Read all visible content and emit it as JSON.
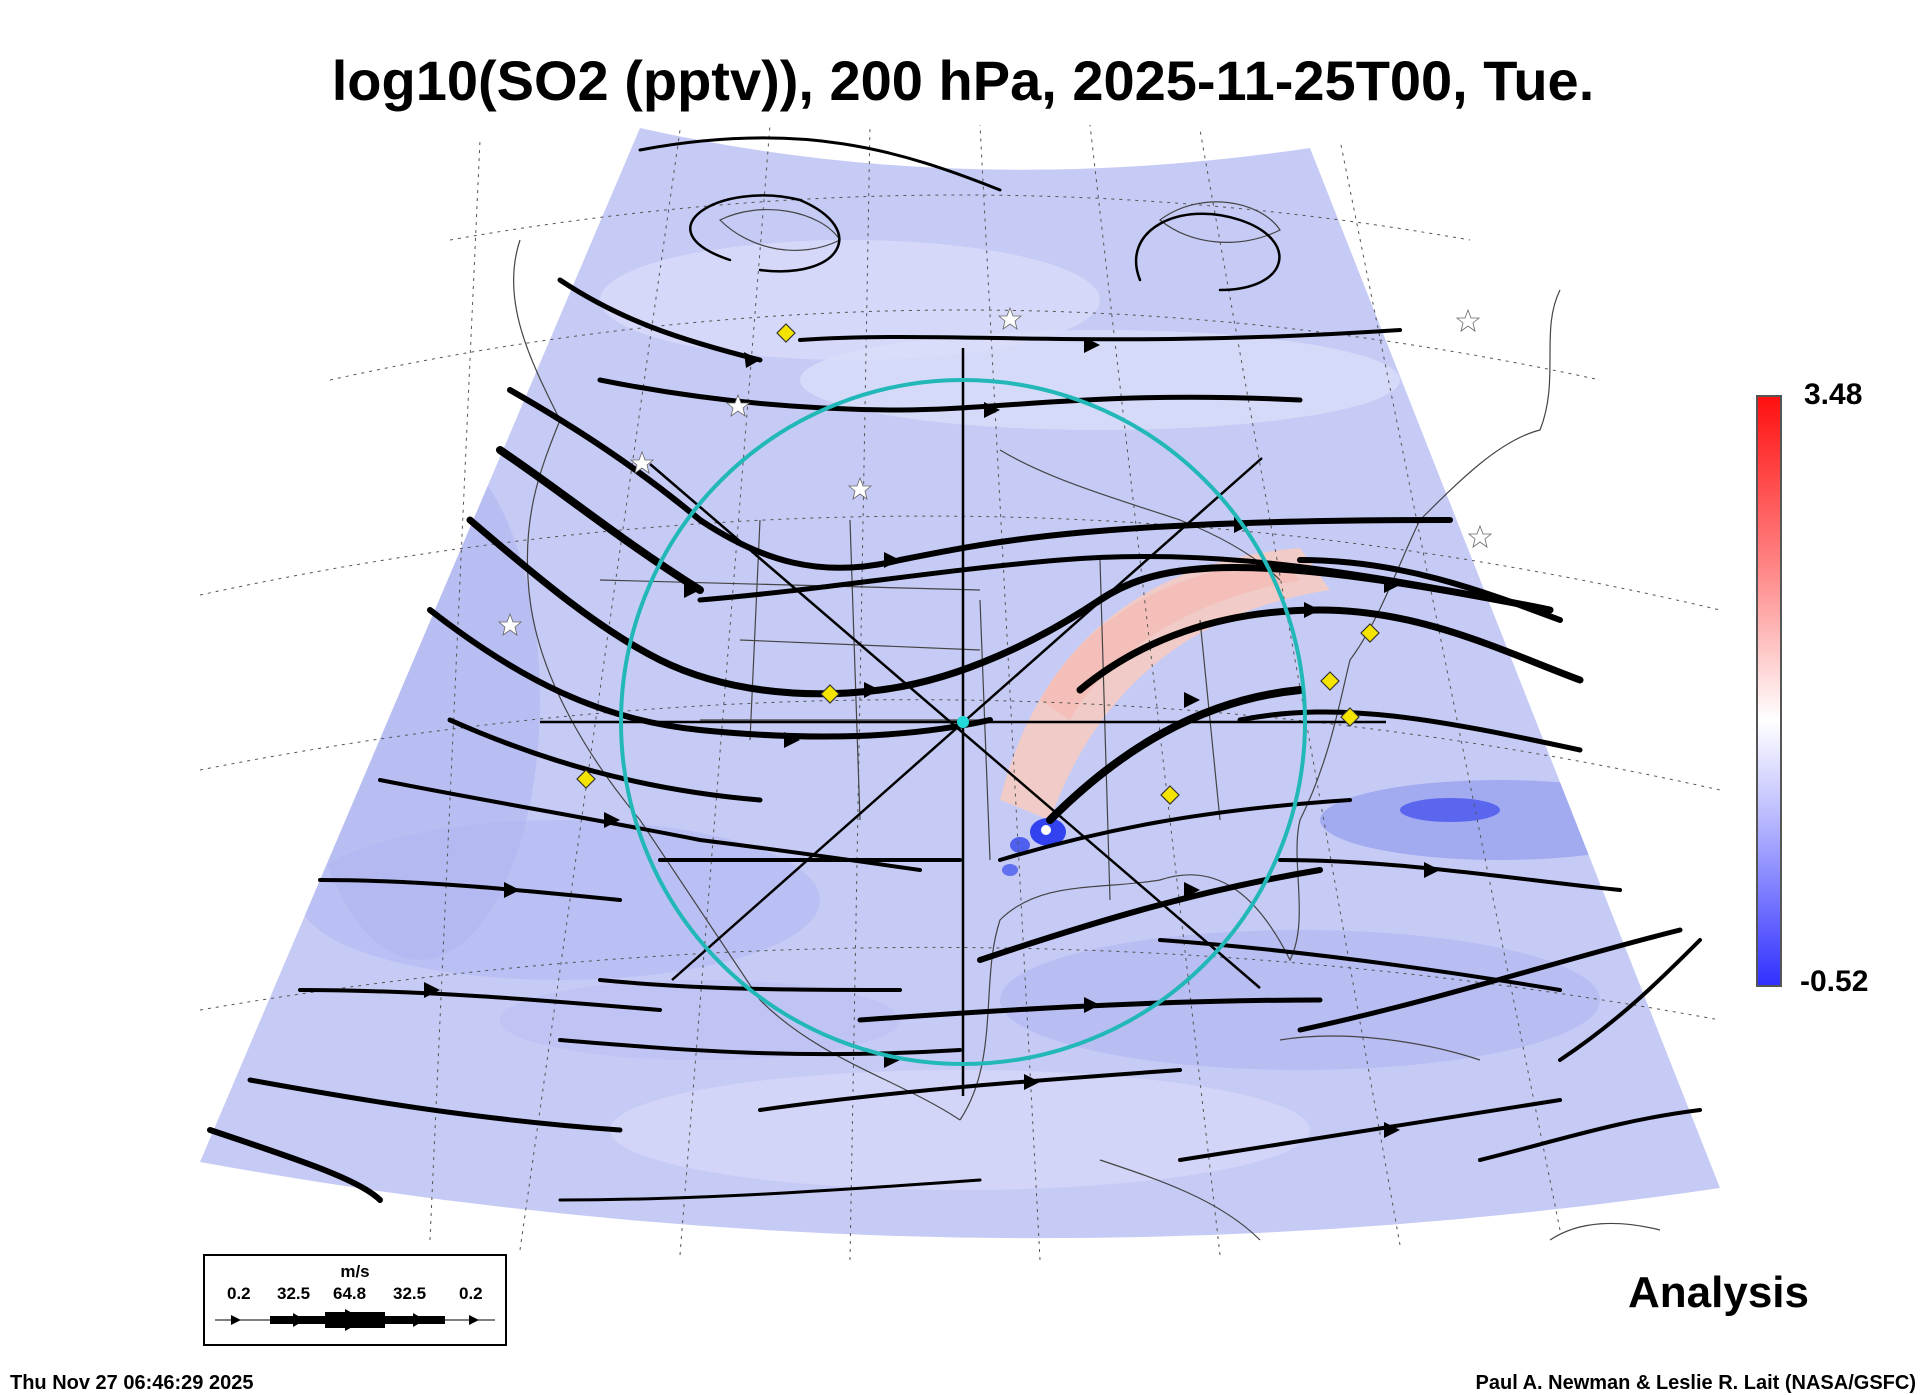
{
  "title": "log10(SO2 (pptv)), 200 hPa, 2025-11-25T00, Tue.",
  "colorbar": {
    "max": "3.48",
    "min": "-0.52"
  },
  "legend": {
    "unit": "m/s",
    "ticks": [
      "0.2",
      "32.5",
      "64.8",
      "32.5",
      "0.2"
    ]
  },
  "label": "Analysis",
  "footer": {
    "timestamp": "Thu Nov 27 06:46:29 2025",
    "credit": "Paul A. Newman & Leslie R. Lait (NASA/GSFC)"
  },
  "colors": {
    "background_field": "#c8ccf8",
    "high_so2": "#f7c8c0",
    "low_so2": "#4450f0",
    "streamlines": "#000000",
    "ring": "#22b8b8",
    "markers": "#f5e400"
  },
  "icons": [
    "yellow-diamond-marker",
    "white-star-marker",
    "cyan-center-marker"
  ]
}
